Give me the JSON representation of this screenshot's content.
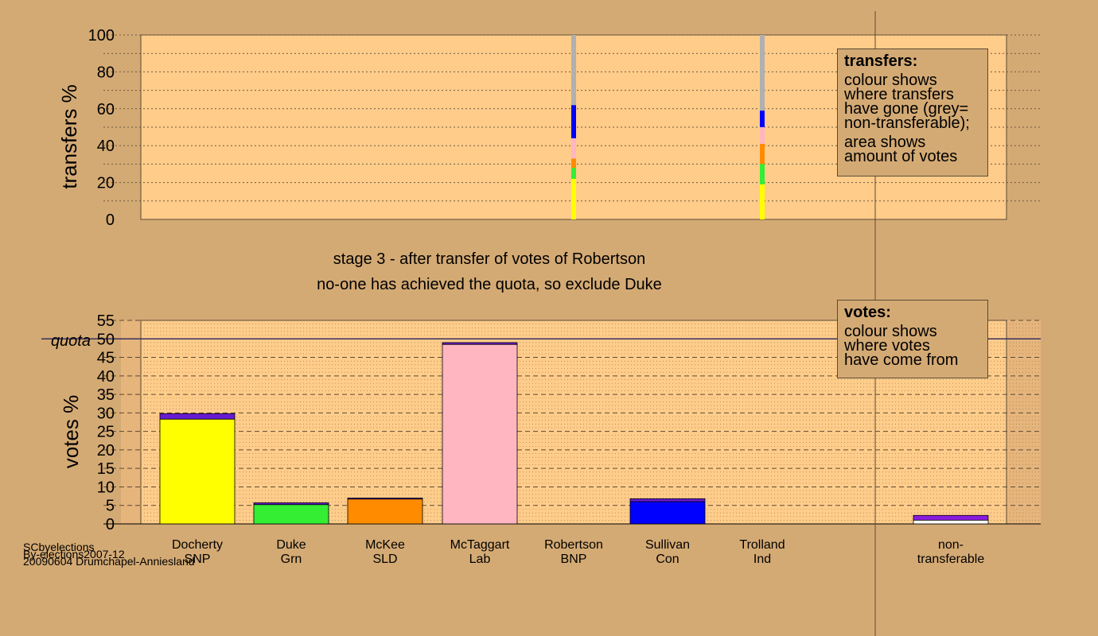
{
  "chart_data": [
    {
      "type": "bar",
      "name": "transfers",
      "ylabel": "transfers %",
      "ylim": [
        0,
        100
      ],
      "yticks": [
        0,
        20,
        40,
        60,
        80,
        100
      ],
      "columns": [
        {
          "candidate": "Robertson",
          "segments": [
            {
              "party": "SNP",
              "color": "#ffff00",
              "from": 0,
              "to": 22
            },
            {
              "party": "Grn",
              "color": "#33ee33",
              "from": 22,
              "to": 28
            },
            {
              "party": "SLD",
              "color": "#ff8c00",
              "from": 28,
              "to": 33
            },
            {
              "party": "Lab",
              "color": "#ffb6c1",
              "from": 33,
              "to": 44
            },
            {
              "party": "Con",
              "color": "#0000ff",
              "from": 44,
              "to": 62
            },
            {
              "party": "non-transferable",
              "color": "#b0b0b0",
              "from": 62,
              "to": 100
            }
          ]
        },
        {
          "candidate": "Trolland",
          "segments": [
            {
              "party": "SNP",
              "color": "#ffff00",
              "from": 0,
              "to": 19
            },
            {
              "party": "Grn",
              "color": "#33ee33",
              "from": 19,
              "to": 30
            },
            {
              "party": "SLD",
              "color": "#ff8c00",
              "from": 30,
              "to": 41
            },
            {
              "party": "Lab",
              "color": "#ffb6c1",
              "from": 41,
              "to": 50
            },
            {
              "party": "Con",
              "color": "#0000ff",
              "from": 50,
              "to": 59
            },
            {
              "party": "non-transferable",
              "color": "#b0b0b0",
              "from": 59,
              "to": 100
            }
          ]
        }
      ]
    },
    {
      "type": "bar",
      "name": "votes",
      "ylabel": "votes %",
      "ylim": [
        0,
        55
      ],
      "yticks": [
        0,
        5,
        10,
        15,
        20,
        25,
        30,
        35,
        40,
        45,
        50,
        55
      ],
      "quota": 50,
      "quota_label": "quota",
      "categories": [
        {
          "line1": "Docherty",
          "line2": "SNP",
          "base": 28.3,
          "top": 29.8,
          "color": "#ffff00",
          "topcolor": "#6a1bd4"
        },
        {
          "line1": "Duke",
          "line2": "Grn",
          "base": 5.2,
          "top": 5.7,
          "color": "#33ee33",
          "topcolor": "#6a1bd4"
        },
        {
          "line1": "McKee",
          "line2": "SLD",
          "base": 6.7,
          "top": 7.0,
          "color": "#ff8c00",
          "topcolor": "#6a1bd4"
        },
        {
          "line1": "McTaggart",
          "line2": "Lab",
          "base": 48.5,
          "top": 49.0,
          "color": "#ffb6c1",
          "topcolor": "#6a1bd4"
        },
        {
          "line1": "Robertson",
          "line2": "BNP",
          "base": 0,
          "top": 0,
          "color": "#555555",
          "topcolor": "#6a1bd4"
        },
        {
          "line1": "Sullivan",
          "line2": "Con",
          "base": 6.0,
          "top": 6.8,
          "color": "#0000ff",
          "topcolor": "#6a1bd4"
        },
        {
          "line1": "Trolland",
          "line2": "Ind",
          "base": 0,
          "top": 0,
          "color": "#555555",
          "topcolor": "#6a1bd4"
        },
        {
          "line1": "non-",
          "line2": "transferable",
          "base": 1.0,
          "top": 2.3,
          "color": "#ffffff",
          "topcolor": "#8a1be0"
        }
      ]
    }
  ],
  "stage": {
    "line1": "stage 3 - after transfer of votes of Robertson",
    "line2": "no-one has achieved the quota, so exclude Duke"
  },
  "legend_transfers": {
    "title": "transfers:",
    "p1": "colour shows\nwhere transfers\nhave gone (grey=\nnon-transferable);",
    "p2": "area shows\namount of votes"
  },
  "legend_votes": {
    "title": "votes:",
    "p1": "colour shows\nwhere votes\nhave come from"
  },
  "footer": {
    "line1": "SCbyelections",
    "line2": "By-elections2007-12",
    "line3": "20090604 Drumchapel-Anniesland"
  }
}
